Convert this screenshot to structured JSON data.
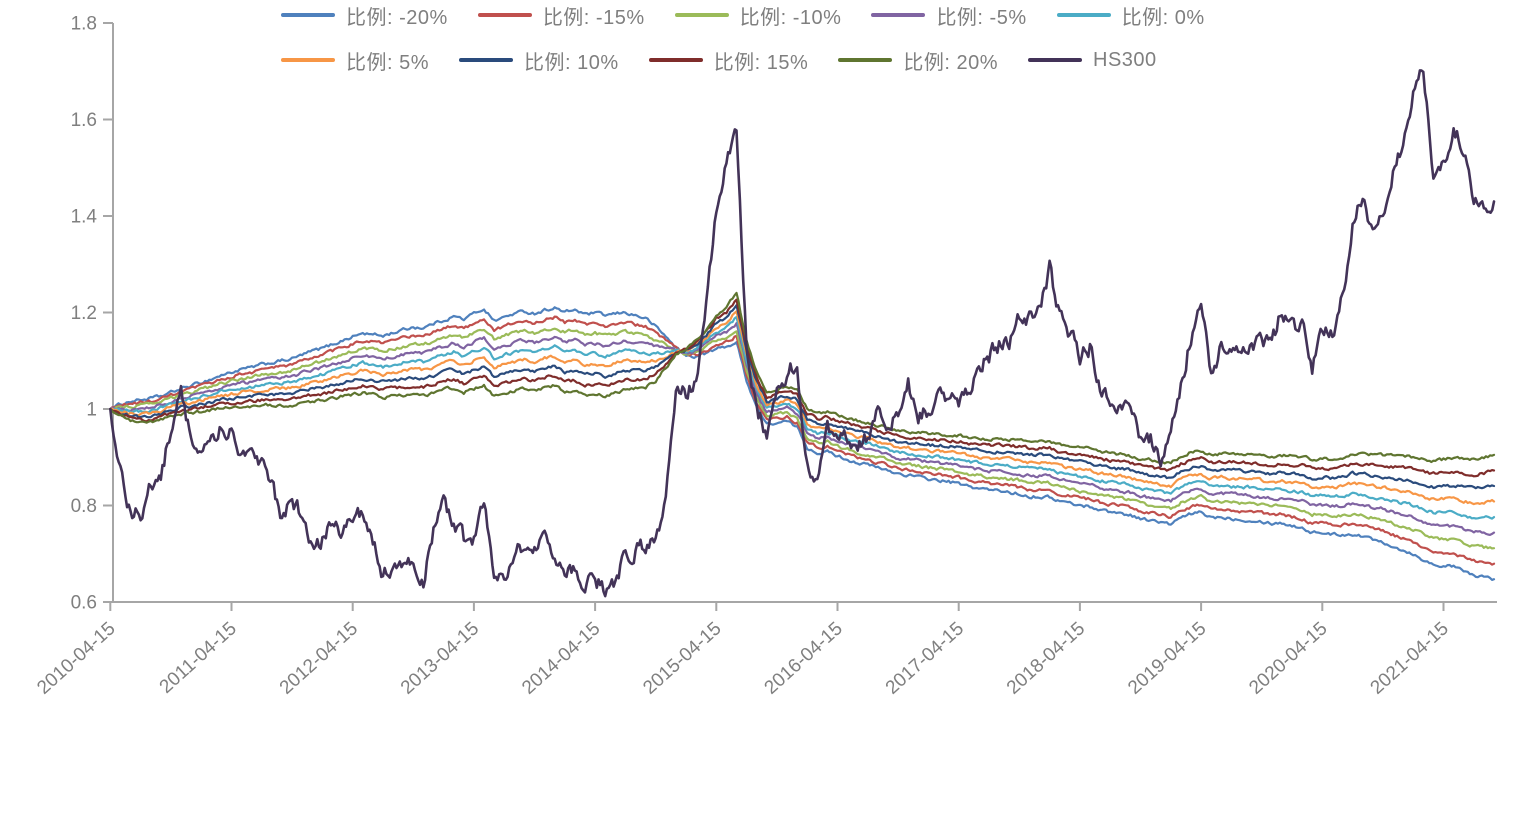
{
  "chart_data": {
    "type": "line",
    "title": "",
    "x_axis": {
      "tick_labels": [
        "2010-04-15",
        "2011-04-15",
        "2012-04-15",
        "2013-04-15",
        "2014-04-15",
        "2015-04-15",
        "2016-04-15",
        "2017-04-15",
        "2018-04-15",
        "2019-04-15",
        "2020-04-15",
        "2021-04-15"
      ],
      "data_start_month": "2010-04",
      "data_end_month": "2021-09"
    },
    "y_axis": {
      "ticks": [
        0.6,
        0.8,
        1,
        1.2,
        1.4,
        1.6,
        1.8
      ],
      "tick_labels": [
        "0.6",
        "0.8",
        "1",
        "1.2",
        "1.4",
        "1.6",
        "1.8"
      ],
      "range": [
        0.6,
        1.8
      ]
    },
    "grid": false,
    "legend_position": "bottom",
    "series_formula": "ratio series monthly value[i] = center[i] + weight * spread[i]; hs300 uses its own array; all series start at 1.0 on 2010-04-15",
    "center": [
      1.0,
      0.998,
      0.996,
      0.995,
      0.998,
      1.002,
      1.01,
      1.016,
      1.02,
      1.025,
      1.03,
      1.036,
      1.04,
      1.044,
      1.046,
      1.05,
      1.052,
      1.054,
      1.056,
      1.062,
      1.068,
      1.072,
      1.078,
      1.084,
      1.09,
      1.095,
      1.092,
      1.088,
      1.092,
      1.096,
      1.1,
      1.098,
      1.105,
      1.112,
      1.118,
      1.11,
      1.12,
      1.128,
      1.105,
      1.112,
      1.118,
      1.122,
      1.118,
      1.125,
      1.13,
      1.118,
      1.122,
      1.112,
      1.115,
      1.11,
      1.115,
      1.12,
      1.118,
      1.116,
      1.115,
      1.118,
      1.12,
      1.118,
      1.125,
      1.14,
      1.16,
      1.17,
      1.19,
      1.1,
      1.04,
      1.0,
      1.005,
      1.01,
      1.0,
      0.96,
      0.95,
      0.952,
      0.945,
      0.938,
      0.932,
      0.928,
      0.922,
      0.916,
      0.91,
      0.908,
      0.905,
      0.902,
      0.9,
      0.898,
      0.895,
      0.89,
      0.888,
      0.885,
      0.884,
      0.882,
      0.88,
      0.876,
      0.876,
      0.875,
      0.868,
      0.864,
      0.86,
      0.858,
      0.852,
      0.848,
      0.845,
      0.842,
      0.835,
      0.832,
      0.828,
      0.825,
      0.838,
      0.846,
      0.85,
      0.84,
      0.842,
      0.84,
      0.838,
      0.838,
      0.835,
      0.832,
      0.834,
      0.83,
      0.828,
      0.82,
      0.82,
      0.818,
      0.82,
      0.825,
      0.822,
      0.818,
      0.815,
      0.81,
      0.805,
      0.8,
      0.792,
      0.785,
      0.786,
      0.785,
      0.78,
      0.775,
      0.775,
      0.776
    ],
    "spread": [
      0.0,
      0.003,
      0.005,
      0.006,
      0.006,
      0.006,
      0.006,
      0.0065,
      0.007,
      0.0075,
      0.008,
      0.0085,
      0.009,
      0.0095,
      0.01,
      0.0105,
      0.011,
      0.0115,
      0.012,
      0.0125,
      0.013,
      0.0135,
      0.014,
      0.0145,
      0.015,
      0.0155,
      0.0155,
      0.016,
      0.0165,
      0.017,
      0.0175,
      0.0175,
      0.018,
      0.018,
      0.0185,
      0.019,
      0.0195,
      0.02,
      0.0195,
      0.0195,
      0.02,
      0.02,
      0.02,
      0.02,
      0.02,
      0.0205,
      0.021,
      0.021,
      0.021,
      0.021,
      0.0205,
      0.02,
      0.019,
      0.018,
      0.014,
      0.008,
      0.002,
      -0.002,
      -0.004,
      -0.006,
      -0.009,
      -0.01,
      -0.013,
      -0.01,
      -0.009,
      -0.008,
      -0.0085,
      -0.009,
      -0.0095,
      -0.01,
      -0.01,
      -0.0102,
      -0.0105,
      -0.0107,
      -0.0108,
      -0.0109,
      -0.011,
      -0.011,
      -0.011,
      -0.0112,
      -0.0115,
      -0.0118,
      -0.012,
      -0.0122,
      -0.0125,
      -0.0128,
      -0.013,
      -0.0132,
      -0.0134,
      -0.0136,
      -0.014,
      -0.0142,
      -0.0144,
      -0.0145,
      -0.0146,
      -0.0148,
      -0.015,
      -0.015,
      -0.0152,
      -0.0152,
      -0.0153,
      -0.0154,
      -0.0155,
      -0.0156,
      -0.0158,
      -0.016,
      -0.016,
      -0.016,
      -0.016,
      -0.0162,
      -0.0164,
      -0.0166,
      -0.0168,
      -0.017,
      -0.017,
      -0.0172,
      -0.0175,
      -0.018,
      -0.0185,
      -0.019,
      -0.019,
      -0.0195,
      -0.02,
      -0.021,
      -0.0215,
      -0.022,
      -0.0225,
      -0.0235,
      -0.0245,
      -0.025,
      -0.026,
      -0.027,
      -0.0275,
      -0.028,
      -0.029,
      -0.03,
      -0.031,
      -0.0322
    ],
    "hs300": [
      1.0,
      0.88,
      0.79,
      0.78,
      0.85,
      0.86,
      0.96,
      1.03,
      0.94,
      0.91,
      0.95,
      0.96,
      0.95,
      0.91,
      0.9,
      0.89,
      0.84,
      0.77,
      0.81,
      0.78,
      0.7,
      0.73,
      0.78,
      0.73,
      0.78,
      0.78,
      0.73,
      0.66,
      0.655,
      0.68,
      0.67,
      0.645,
      0.75,
      0.8,
      0.77,
      0.73,
      0.725,
      0.8,
      0.66,
      0.66,
      0.7,
      0.72,
      0.705,
      0.72,
      0.69,
      0.655,
      0.67,
      0.64,
      0.645,
      0.63,
      0.645,
      0.7,
      0.705,
      0.72,
      0.73,
      0.8,
      1.05,
      1.03,
      1.06,
      1.22,
      1.41,
      1.52,
      1.575,
      1.13,
      1.0,
      0.95,
      1.04,
      1.07,
      1.1,
      0.88,
      0.855,
      0.95,
      0.945,
      0.94,
      0.935,
      0.945,
      0.99,
      0.965,
      0.99,
      1.05,
      0.98,
      1.0,
      1.02,
      1.025,
      1.02,
      1.035,
      1.09,
      1.11,
      1.135,
      1.14,
      1.19,
      1.19,
      1.2,
      1.29,
      1.19,
      1.16,
      1.11,
      1.13,
      1.04,
      1.02,
      0.99,
      1.02,
      0.93,
      0.94,
      0.89,
      0.95,
      1.05,
      1.15,
      1.21,
      1.08,
      1.13,
      1.14,
      1.12,
      1.13,
      1.15,
      1.13,
      1.21,
      1.17,
      1.17,
      1.09,
      1.16,
      1.15,
      1.23,
      1.39,
      1.44,
      1.36,
      1.39,
      1.5,
      1.55,
      1.65,
      1.71,
      1.49,
      1.5,
      1.57,
      1.55,
      1.42,
      1.43,
      1.43
    ],
    "series": [
      {
        "key": "ratio-m20",
        "label": "比例: -20%",
        "color": "#4F81BD",
        "weight": 4
      },
      {
        "key": "ratio-m15",
        "label": "比例: -15%",
        "color": "#C0504D",
        "weight": 3
      },
      {
        "key": "ratio-m10",
        "label": "比例: -10%",
        "color": "#9BBB59",
        "weight": 2
      },
      {
        "key": "ratio-m5",
        "label": "比例: -5%",
        "color": "#8064A2",
        "weight": 1
      },
      {
        "key": "ratio-0",
        "label": "比例: 0%",
        "color": "#4BACC6",
        "weight": 0
      },
      {
        "key": "ratio-5",
        "label": "比例: 5%",
        "color": "#F79646",
        "weight": -1
      },
      {
        "key": "ratio-10",
        "label": "比例: 10%",
        "color": "#2A4B7C",
        "weight": -2
      },
      {
        "key": "ratio-15",
        "label": "比例: 15%",
        "color": "#7F2D2B",
        "weight": -3
      },
      {
        "key": "ratio-20",
        "label": "比例: 20%",
        "color": "#5F7530",
        "weight": -4
      },
      {
        "key": "hs300",
        "label": "HS300",
        "color": "#433358",
        "weight": null
      }
    ],
    "legend_rows": [
      [
        0,
        1,
        2,
        3,
        4
      ],
      [
        5,
        6,
        7,
        8,
        9
      ]
    ]
  },
  "style": {
    "axis_color": "#a6a6a6",
    "tick_text_color": "#7f7f7f",
    "legend_text_color": "#7f7f7f",
    "background": "#ffffff"
  }
}
